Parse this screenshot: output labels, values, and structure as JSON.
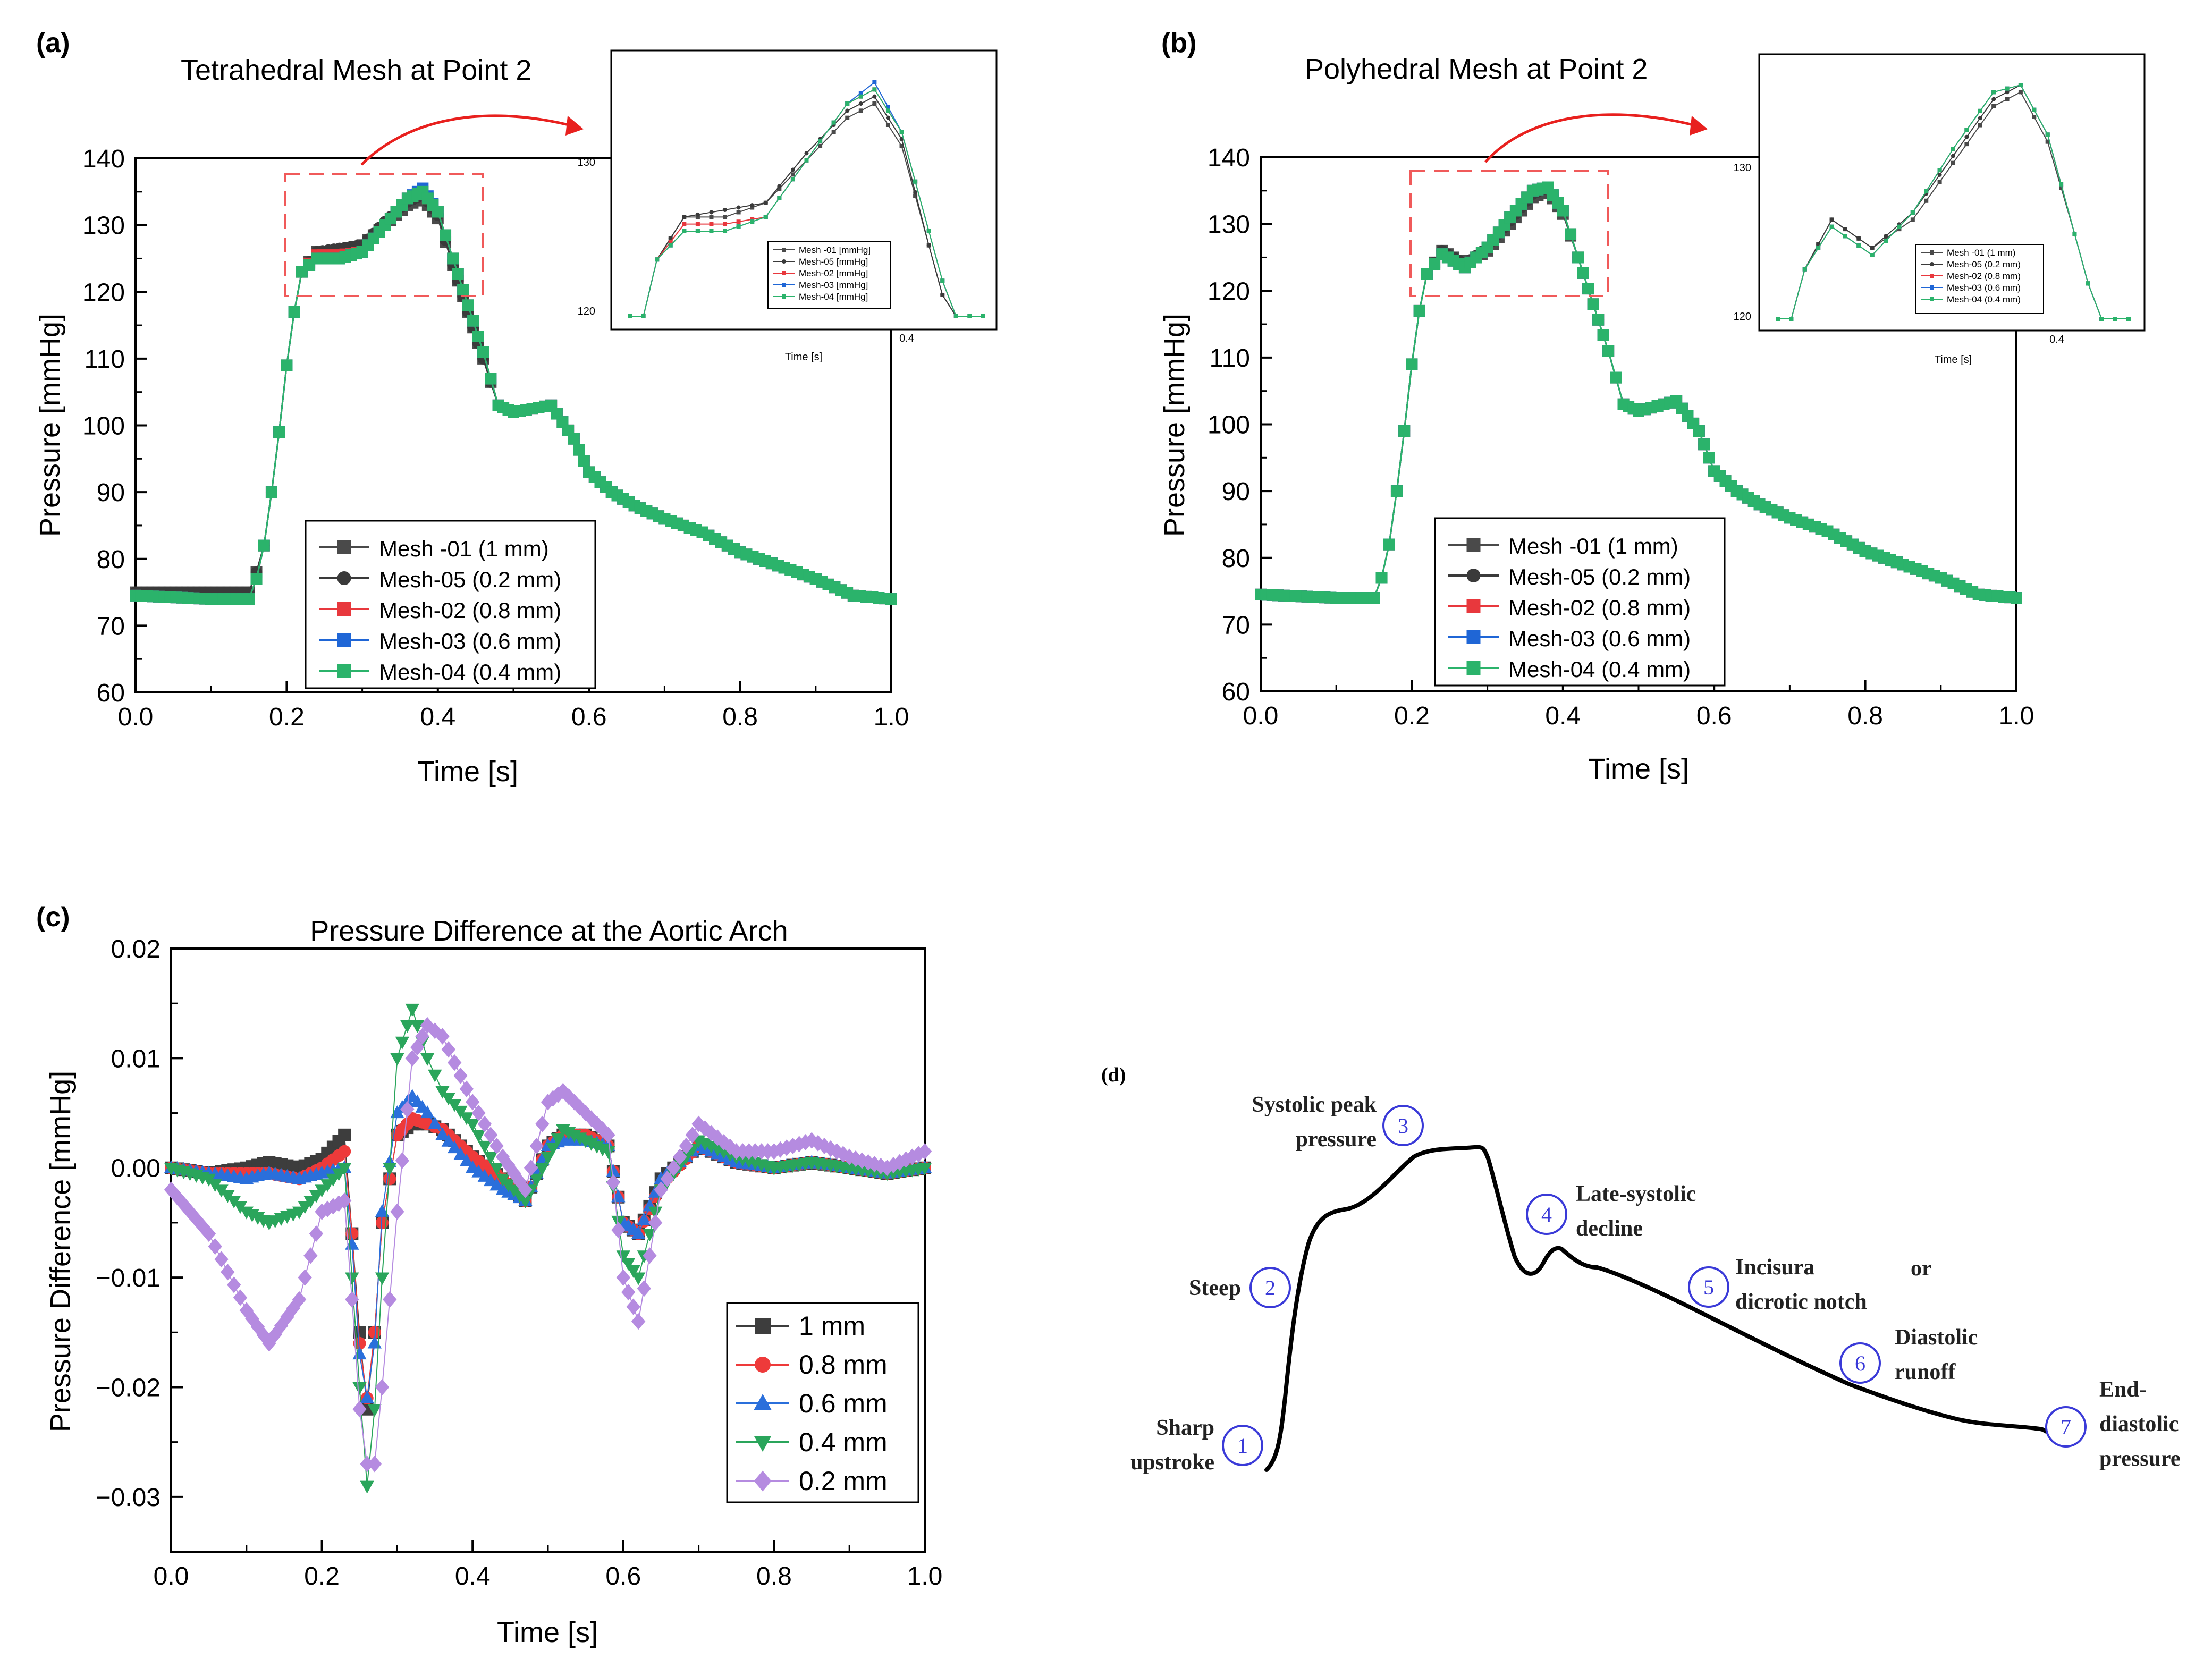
{
  "figure": {
    "panel_labels": [
      "(a)",
      "(b)",
      "(c)",
      "(d)"
    ]
  },
  "colors": {
    "mesh01": "#4a4a4a",
    "mesh05": "#3a3a3a",
    "mesh02": "#e8383d",
    "mesh03": "#1f66d6",
    "mesh04": "#2bb36b",
    "c_1mm": "#3d3d3d",
    "c_08mm": "#ee3a3a",
    "c_06mm": "#2a6fdb",
    "c_04mm": "#2aa55b",
    "c_02mm": "#b58be0",
    "zoom_box": "#f05a5a",
    "arrow": "#e8201e",
    "diagram_circle": "#3a3ad8"
  },
  "chart_data": [
    {
      "panel": "(a)",
      "type": "line",
      "title": "Tetrahedral Mesh at Point 2",
      "xlabel": "Time [s]",
      "ylabel": "Pressure [mmHg]",
      "xlim": [
        0.0,
        1.0
      ],
      "ylim": [
        60,
        140
      ],
      "xticks": [
        "0.0",
        "0.2",
        "0.4",
        "0.6",
        "0.8",
        "1.0"
      ],
      "yticks": [
        "60",
        "70",
        "80",
        "90",
        "100",
        "110",
        "120",
        "130",
        "140"
      ],
      "legend": [
        "Mesh -01 (1 mm)",
        "Mesh-05 (0.2 mm)",
        "Mesh-02 (0.8 mm)",
        "Mesh-03 (0.6 mm)",
        "Mesh-04 (0.4 mm)"
      ],
      "x": [
        0.0,
        0.1,
        0.15,
        0.16,
        0.17,
        0.18,
        0.19,
        0.2,
        0.21,
        0.22,
        0.24,
        0.27,
        0.3,
        0.33,
        0.36,
        0.38,
        0.4,
        0.42,
        0.44,
        0.46,
        0.48,
        0.5,
        0.55,
        0.58,
        0.6,
        0.63,
        0.66,
        0.7,
        0.75,
        0.8,
        0.85,
        0.9,
        0.95,
        1.0
      ],
      "series": [
        {
          "name": "Mesh -01 (1 mm)",
          "values": [
            75,
            75,
            75,
            78,
            82,
            90,
            99,
            109,
            117,
            123,
            126,
            126,
            127,
            130,
            133,
            134,
            131,
            124,
            117,
            110,
            103,
            102,
            103,
            98,
            93,
            90,
            88,
            86,
            84,
            81,
            79,
            77,
            74.5,
            74
          ]
        },
        {
          "name": "Mesh-05 (0.2 mm)",
          "values": [
            75,
            75,
            75,
            78,
            82,
            90,
            99,
            109,
            117,
            123,
            126,
            126.5,
            127,
            130.5,
            133.5,
            134.5,
            131.5,
            124,
            117,
            110,
            103,
            102,
            103,
            98,
            93,
            90,
            88,
            86,
            84,
            81,
            79,
            77,
            74.5,
            74
          ]
        },
        {
          "name": "Mesh-02 (0.8 mm)",
          "values": [
            74.5,
            74,
            74,
            77,
            82,
            90,
            99,
            109,
            117,
            123,
            125.5,
            125.5,
            126,
            130,
            134,
            135,
            132,
            125,
            118,
            111,
            103,
            102,
            103,
            98,
            93,
            90,
            88,
            86,
            84,
            81,
            79,
            77,
            74.5,
            74
          ]
        },
        {
          "name": "Mesh-03 (0.6 mm)",
          "values": [
            74.5,
            74,
            74,
            77,
            82,
            90,
            99,
            109,
            117,
            123,
            125,
            125,
            126,
            130,
            134,
            135.5,
            132,
            125,
            118,
            111,
            103,
            102,
            103,
            98,
            93,
            90,
            88,
            86,
            84,
            81,
            79,
            77,
            74.5,
            74
          ]
        },
        {
          "name": "Mesh-04 (0.4 mm)",
          "values": [
            74.5,
            74,
            74,
            77,
            82,
            90,
            99,
            109,
            117,
            123,
            125,
            125,
            126,
            130,
            134,
            135,
            132,
            125,
            118,
            111,
            103,
            102,
            103,
            98,
            93,
            90,
            88,
            86,
            84,
            81,
            79,
            77,
            74.5,
            74
          ]
        }
      ],
      "zoom_region": {
        "x": [
          0.2,
          0.46
        ],
        "y": [
          119,
          137
        ]
      },
      "inset": {
        "xlabel": "Time [s]",
        "xtick": "0.4",
        "yticks": [
          "120",
          "130"
        ],
        "legend": [
          "Mesh -01 [mmHg]",
          "Mesh-05 [mmHg]",
          "Mesh-02 [mmHg]",
          "Mesh-03 [mmHg]",
          "Mesh-04 [mmHg]"
        ]
      }
    },
    {
      "panel": "(b)",
      "type": "line",
      "title": "Polyhedral Mesh at Point 2",
      "xlabel": "Time [s]",
      "ylabel": "Pressure [mmHg]",
      "xlim": [
        0.0,
        1.0
      ],
      "ylim": [
        60,
        140
      ],
      "xticks": [
        "0.0",
        "0.2",
        "0.4",
        "0.6",
        "0.8",
        "1.0"
      ],
      "yticks": [
        "60",
        "70",
        "80",
        "90",
        "100",
        "110",
        "120",
        "130",
        "140"
      ],
      "legend": [
        "Mesh -01 (1 mm)",
        "Mesh-05 (0.2 mm)",
        "Mesh-02 (0.8 mm)",
        "Mesh-03 (0.6 mm)",
        "Mesh-04 (0.4 mm)"
      ],
      "x": [
        0.0,
        0.1,
        0.15,
        0.16,
        0.17,
        0.18,
        0.19,
        0.2,
        0.21,
        0.22,
        0.24,
        0.27,
        0.3,
        0.33,
        0.36,
        0.38,
        0.4,
        0.42,
        0.44,
        0.46,
        0.48,
        0.5,
        0.55,
        0.58,
        0.6,
        0.63,
        0.66,
        0.7,
        0.75,
        0.8,
        0.85,
        0.9,
        0.95,
        1.0
      ],
      "series": [
        {
          "name": "Mesh -01 (1 mm)",
          "values": [
            74.5,
            74,
            74,
            77,
            82,
            90,
            99,
            109,
            117,
            122.5,
            126,
            124,
            126,
            130,
            134,
            135,
            131.5,
            125,
            118,
            111,
            103,
            102,
            103.5,
            99,
            93,
            90,
            88,
            86,
            84,
            81,
            79,
            77,
            74.5,
            74
          ]
        },
        {
          "name": "Mesh-05 (0.2 mm)",
          "values": [
            74.5,
            74,
            74,
            77,
            82,
            90,
            99,
            109,
            117,
            122.5,
            126,
            124,
            126.5,
            130.5,
            134.5,
            135.5,
            132,
            125,
            118,
            111,
            103,
            102,
            103.5,
            99,
            93,
            90,
            88,
            86,
            84,
            81,
            79,
            77,
            74.5,
            74
          ]
        },
        {
          "name": "Mesh-02 (0.8 mm)",
          "values": [
            74.5,
            74,
            74,
            77,
            82,
            90,
            99,
            109,
            117,
            122.5,
            125.5,
            123.5,
            126.5,
            131,
            135,
            135.5,
            132,
            125,
            118,
            111,
            103,
            102,
            103.5,
            99,
            93,
            90,
            88,
            86,
            84,
            81,
            79,
            77,
            74.5,
            74
          ]
        },
        {
          "name": "Mesh-03 (0.6 mm)",
          "values": [
            74.5,
            74,
            74,
            77,
            82,
            90,
            99,
            109,
            117,
            122.5,
            125.5,
            123.5,
            126.5,
            131,
            135,
            135.5,
            132,
            125,
            118,
            111,
            103,
            102,
            103.5,
            99,
            93,
            90,
            88,
            86,
            84,
            81,
            79,
            77,
            74.5,
            74
          ]
        },
        {
          "name": "Mesh-04 (0.4 mm)",
          "values": [
            74.5,
            74,
            74,
            77,
            82,
            90,
            99,
            109,
            117,
            122.5,
            125.5,
            123.5,
            126.5,
            131,
            135,
            135.5,
            132,
            125,
            118,
            111,
            103,
            102,
            103.5,
            99,
            93,
            90,
            88,
            86,
            84,
            81,
            79,
            77,
            74.5,
            74
          ]
        }
      ],
      "zoom_region": {
        "x": [
          0.2,
          0.46
        ],
        "y": [
          119,
          137
        ]
      },
      "inset": {
        "xlabel": "Time [s]",
        "xtick": "0.4",
        "yticks": [
          "120",
          "130"
        ],
        "legend": [
          "Mesh -01 (1 mm)",
          "Mesh-05 (0.2 mm)",
          "Mesh-02 (0.8 mm)",
          "Mesh-03 (0.6 mm)",
          "Mesh-04 (0.4 mm)"
        ]
      }
    },
    {
      "panel": "(c)",
      "type": "line",
      "title": "Pressure Difference at the Aortic Arch",
      "xlabel": "Time [s]",
      "ylabel": "Pressure Difference [mmHg]",
      "xlim": [
        0.0,
        1.0
      ],
      "ylim": [
        -0.035,
        0.02
      ],
      "xticks": [
        "0.0",
        "0.2",
        "0.4",
        "0.6",
        "0.8",
        "1.0"
      ],
      "yticks": [
        "-0.03",
        "-0.02",
        "-0.01",
        "0.00",
        "0.01",
        "0.02"
      ],
      "legend": [
        "1 mm",
        "0.8 mm",
        "0.6 mm",
        "0.4 mm",
        "0.2 mm"
      ],
      "x": [
        0.0,
        0.05,
        0.1,
        0.13,
        0.17,
        0.2,
        0.23,
        0.24,
        0.25,
        0.26,
        0.27,
        0.28,
        0.3,
        0.32,
        0.34,
        0.36,
        0.4,
        0.44,
        0.47,
        0.5,
        0.52,
        0.55,
        0.58,
        0.6,
        0.62,
        0.65,
        0.7,
        0.75,
        0.8,
        0.85,
        0.9,
        0.95,
        1.0
      ],
      "series": [
        {
          "name": "1 mm",
          "values": [
            0.0,
            -0.0005,
            0.0,
            0.0005,
            0.0,
            0.0008,
            0.003,
            -0.006,
            -0.015,
            -0.022,
            -0.015,
            -0.005,
            0.003,
            0.004,
            0.004,
            0.0035,
            0.001,
            -0.001,
            -0.003,
            0.002,
            0.003,
            0.003,
            0.002,
            -0.005,
            -0.006,
            -0.001,
            0.002,
            0.0005,
            0.0,
            0.0005,
            0.0,
            -0.0005,
            0.0
          ]
        },
        {
          "name": "0.8 mm",
          "values": [
            0.0,
            -0.0005,
            -0.0005,
            -0.0005,
            -0.001,
            0.0,
            0.0015,
            -0.006,
            -0.016,
            -0.021,
            -0.015,
            -0.005,
            0.003,
            0.0045,
            0.004,
            0.0035,
            0.001,
            -0.001,
            -0.003,
            0.002,
            0.003,
            0.003,
            0.002,
            -0.005,
            -0.006,
            -0.0015,
            0.002,
            0.0005,
            0.0,
            0.0005,
            0.0,
            -0.0005,
            0.0
          ]
        },
        {
          "name": "0.6 mm",
          "values": [
            0.0,
            -0.0005,
            -0.001,
            -0.0005,
            -0.001,
            -0.0005,
            0.0,
            -0.007,
            -0.017,
            -0.021,
            -0.016,
            -0.004,
            0.005,
            0.0065,
            0.005,
            0.003,
            0.0,
            -0.002,
            -0.003,
            0.002,
            0.0025,
            0.0025,
            0.002,
            -0.005,
            -0.006,
            -0.001,
            0.002,
            0.0005,
            0.0,
            0.0005,
            0.0,
            -0.0005,
            0.0
          ]
        },
        {
          "name": "0.4 mm",
          "values": [
            0.0,
            -0.001,
            -0.004,
            -0.005,
            -0.004,
            -0.002,
            0.0,
            -0.01,
            -0.02,
            -0.029,
            -0.022,
            -0.01,
            0.01,
            0.0145,
            0.01,
            0.007,
            0.004,
            -0.001,
            -0.003,
            0.001,
            0.0035,
            0.0025,
            0.0015,
            -0.008,
            -0.01,
            -0.002,
            0.0025,
            0.001,
            0.0,
            0.0005,
            0.0,
            -0.0005,
            0.0
          ]
        },
        {
          "name": "0.2 mm",
          "values": [
            -0.002,
            -0.006,
            -0.013,
            -0.016,
            -0.012,
            -0.004,
            -0.003,
            -0.012,
            -0.022,
            -0.027,
            -0.027,
            -0.02,
            -0.004,
            0.01,
            0.013,
            0.012,
            0.006,
            0.001,
            -0.002,
            0.006,
            0.007,
            0.005,
            0.003,
            -0.01,
            -0.014,
            -0.002,
            0.004,
            0.0015,
            0.0015,
            0.0025,
            0.001,
            0.0,
            0.0015
          ]
        }
      ]
    }
  ],
  "diagram": {
    "panel": "(d)",
    "points": [
      {
        "num": "1",
        "lines": [
          "Sharp",
          "upstroke"
        ]
      },
      {
        "num": "2",
        "lines": [
          "Steep"
        ]
      },
      {
        "num": "3",
        "lines": [
          "Systolic peak",
          "pressure"
        ]
      },
      {
        "num": "4",
        "lines": [
          "Late-systolic",
          "decline"
        ]
      },
      {
        "num": "5",
        "lines": [
          "Incisura",
          "dicrotic notch"
        ]
      },
      {
        "num": "6",
        "lines": [
          "Diastolic",
          "runoff"
        ]
      },
      {
        "num": "7",
        "lines": [
          "End-",
          "diastolic",
          "pressure"
        ]
      }
    ],
    "or_label": "or"
  }
}
